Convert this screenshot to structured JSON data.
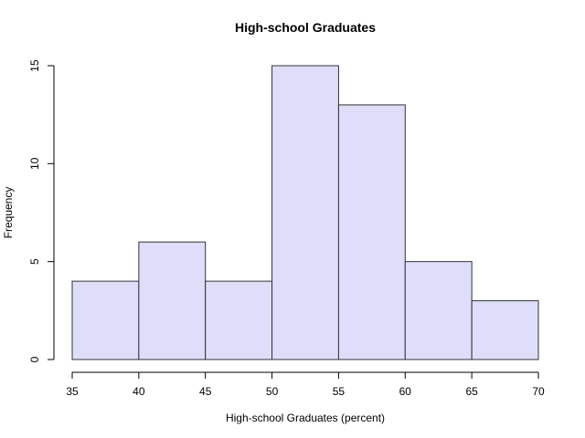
{
  "chart_data": {
    "type": "bar",
    "title": "High-school Graduates",
    "xlabel": "High-school Graduates (percent)",
    "ylabel": "Frequency",
    "bins": [
      {
        "start": 35,
        "end": 40,
        "count": 4
      },
      {
        "start": 40,
        "end": 45,
        "count": 6
      },
      {
        "start": 45,
        "end": 50,
        "count": 4
      },
      {
        "start": 50,
        "end": 55,
        "count": 15
      },
      {
        "start": 55,
        "end": 60,
        "count": 13
      },
      {
        "start": 60,
        "end": 65,
        "count": 5
      },
      {
        "start": 65,
        "end": 70,
        "count": 3
      }
    ],
    "xlim": [
      35,
      70
    ],
    "ylim": [
      0,
      15
    ],
    "x_ticks": [
      "35",
      "40",
      "45",
      "50",
      "55",
      "60",
      "65",
      "70"
    ],
    "y_ticks": [
      "0",
      "5",
      "10",
      "15"
    ],
    "bar_color": "#dedefa",
    "grid": false,
    "legend": "none"
  }
}
